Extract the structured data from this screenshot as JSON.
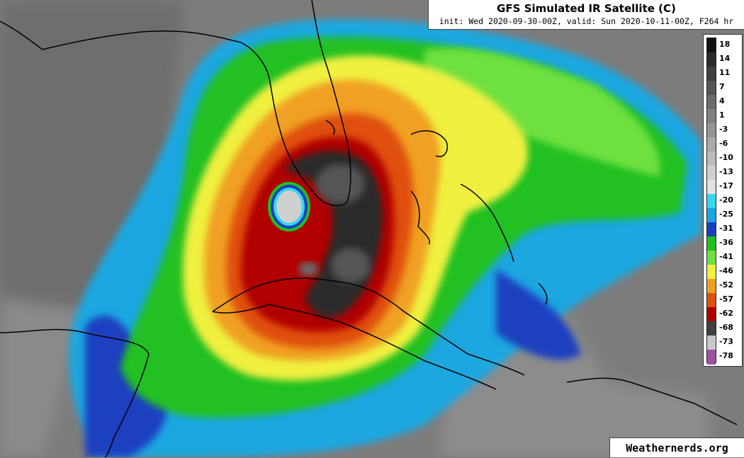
{
  "title": {
    "main": "GFS Simulated IR Satellite (C)",
    "sub": "init: Wed 2020-09-30-00Z, valid: Sun 2020-10-11-00Z, F264 hr"
  },
  "colorbar": {
    "labels": [
      "18",
      "14",
      "11",
      "7",
      "4",
      "1",
      "-3",
      "-6",
      "-10",
      "-13",
      "-17",
      "-20",
      "-25",
      "-31",
      "-36",
      "-41",
      "-46",
      "-52",
      "-57",
      "-62",
      "-68",
      "-73",
      "-78"
    ],
    "colors": [
      "#111111",
      "#2a2a2a",
      "#404040",
      "#555555",
      "#6b6b6b",
      "#808080",
      "#959595",
      "#aaaaaa",
      "#bcbcbc",
      "#cfcfcf",
      "#e2e2e2",
      "#35d6f0",
      "#1aa7e0",
      "#1a3fc0",
      "#20c020",
      "#6ee040",
      "#f0f040",
      "#f0a020",
      "#e05010",
      "#b00000",
      "#404040",
      "#c8c8c8",
      "#a050a0"
    ]
  },
  "credit": "Weathernerds.org"
}
